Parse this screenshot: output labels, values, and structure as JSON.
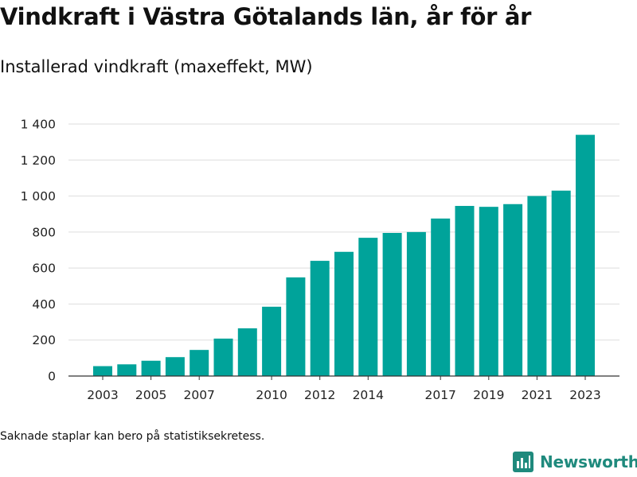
{
  "title": "Vindkraft i Västra Götalands län, år för år",
  "subtitle": "Installerad vindkraft (maxeffekt, MW)",
  "footnote": "Saknade staplar kan bero på statistiksekretess.",
  "brand": {
    "name": "Newsworthy",
    "color": "#1f8a7d",
    "icon": "newsworthy-logo-icon"
  },
  "colors": {
    "bar": "#00a39a",
    "grid": "#dddddd",
    "axis": "#333333"
  },
  "chart_data": {
    "type": "bar",
    "x": [
      2003,
      2004,
      2005,
      2006,
      2007,
      2008,
      2009,
      2010,
      2011,
      2012,
      2013,
      2014,
      2015,
      2016,
      2017,
      2018,
      2019,
      2020,
      2021,
      2022,
      2023
    ],
    "values": [
      55,
      65,
      85,
      105,
      145,
      208,
      265,
      385,
      548,
      640,
      690,
      768,
      795,
      800,
      875,
      945,
      940,
      955,
      1000,
      1030,
      1340
    ],
    "xticks": [
      2003,
      2005,
      2007,
      2010,
      2012,
      2014,
      2017,
      2019,
      2021,
      2023
    ],
    "yticks": [
      0,
      200,
      400,
      600,
      800,
      1000,
      1200,
      1400
    ],
    "ytick_labels": [
      "0",
      "200",
      "400",
      "600",
      "800",
      "1 000",
      "1 200",
      "1 400"
    ],
    "ylim": [
      0,
      1400
    ],
    "xlabel": "",
    "ylabel": "",
    "grid": true
  }
}
